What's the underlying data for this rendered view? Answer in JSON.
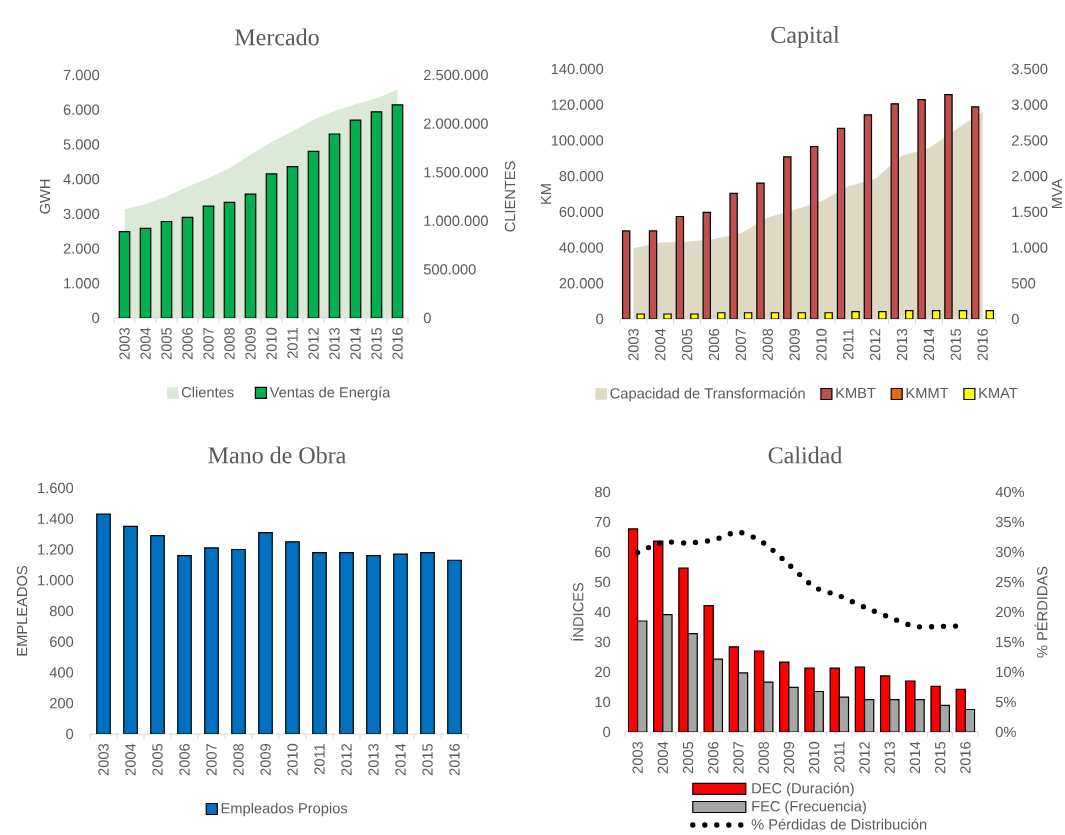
{
  "chart_data": [
    {
      "type": "bar",
      "title": "Mercado",
      "categories": [
        "2003",
        "2004",
        "2005",
        "2006",
        "2007",
        "2008",
        "2009",
        "2010",
        "2011",
        "2012",
        "2013",
        "2014",
        "2015",
        "2016"
      ],
      "ylabel": "GWH",
      "y2label": "CLIENTES",
      "ylim": [
        0,
        7000
      ],
      "yticks": [
        0,
        {
          "value": 1000,
          "label": "1.000"
        },
        {
          "value": 2000,
          "label": "2.000"
        },
        {
          "value": 3000,
          "label": "3.000"
        },
        {
          "value": 4000,
          "label": "4.000"
        },
        {
          "value": 5000,
          "label": "5.000"
        },
        {
          "value": 6000,
          "label": "6.000"
        },
        {
          "value": 7000,
          "label": "7.000"
        }
      ],
      "y2lim": [
        0,
        2500000
      ],
      "y2ticks": [
        0,
        {
          "value": 500000,
          "label": "500.000"
        },
        {
          "value": 1000000,
          "label": "1.000.000"
        },
        {
          "value": 1500000,
          "label": "1.500.000"
        },
        {
          "value": 2000000,
          "label": "2.000.000"
        },
        {
          "value": 2500000,
          "label": "2.500.000"
        }
      ],
      "legend": "bottom",
      "series": [
        {
          "name": "Clientes",
          "type": "area",
          "axis": "y2",
          "color": "#dce9d8",
          "values": [
            1120000,
            1170000,
            1250000,
            1350000,
            1440000,
            1540000,
            1680000,
            1810000,
            1920000,
            2040000,
            2130000,
            2200000,
            2260000,
            2350000
          ]
        },
        {
          "name": "Ventas de Energía",
          "color": "#00b050",
          "values": [
            2490,
            2580,
            2780,
            2900,
            3220,
            3330,
            3570,
            4150,
            4360,
            4800,
            5300,
            5700,
            5940,
            6140
          ]
        }
      ]
    },
    {
      "type": "bar",
      "title": "Capital",
      "categories": [
        "2003",
        "2004",
        "2005",
        "2006",
        "2007",
        "2008",
        "2009",
        "2010",
        "2011",
        "2012",
        "2013",
        "2014",
        "2015",
        "2016"
      ],
      "ylabel": "KM",
      "y2label": "MVA",
      "ylim": [
        0,
        140000
      ],
      "yticks": [
        0,
        {
          "value": 20000,
          "label": "20.000"
        },
        {
          "value": 40000,
          "label": "40.000"
        },
        {
          "value": 60000,
          "label": "60.000"
        },
        {
          "value": 80000,
          "label": "80.000"
        },
        {
          "value": 100000,
          "label": "100.000"
        },
        {
          "value": 120000,
          "label": "120.000"
        },
        {
          "value": 140000,
          "label": "140.000"
        }
      ],
      "y2lim": [
        0,
        3500
      ],
      "y2ticks": [
        0,
        500,
        {
          "value": 1000,
          "label": "1.000"
        },
        {
          "value": 1500,
          "label": "1.500"
        },
        {
          "value": 2000,
          "label": "2.000"
        },
        {
          "value": 2500,
          "label": "2.500"
        },
        {
          "value": 3000,
          "label": "3.000"
        },
        {
          "value": 3500,
          "label": "3.500"
        }
      ],
      "legend": "bottom",
      "series": [
        {
          "name": "Capacidad de Transformación",
          "type": "area",
          "axis": "y2",
          "color": "#ddd9c3",
          "values": [
            990,
            1070,
            1080,
            1120,
            1200,
            1420,
            1530,
            1650,
            1860,
            1960,
            2290,
            2390,
            2650,
            2900
          ]
        },
        {
          "name": "KMBT",
          "color": "#c0504d",
          "values": [
            49300,
            49300,
            57400,
            59700,
            70400,
            76100,
            90800,
            96600,
            106700,
            114300,
            120500,
            122800,
            125600,
            118800
          ]
        },
        {
          "name": "KMMT",
          "color": "#e46c0a",
          "values": [
            null,
            null,
            null,
            null,
            null,
            null,
            null,
            null,
            null,
            null,
            null,
            null,
            null,
            null
          ]
        },
        {
          "name": "KMAT",
          "color": "#ffff00",
          "values": [
            2800,
            2800,
            2800,
            3500,
            3500,
            3500,
            3500,
            3500,
            4100,
            4100,
            4700,
            4700,
            4700,
            4700
          ]
        }
      ]
    },
    {
      "type": "bar",
      "title": "Mano de Obra",
      "categories": [
        "2003",
        "2004",
        "2005",
        "2006",
        "2007",
        "2008",
        "2009",
        "2010",
        "2011",
        "2012",
        "2013",
        "2014",
        "2015",
        "2016"
      ],
      "ylabel": "EMPLEADOS",
      "ylim": [
        0,
        1600
      ],
      "yticks": [
        0,
        200,
        400,
        600,
        800,
        {
          "value": 1000,
          "label": "1.000"
        },
        {
          "value": 1200,
          "label": "1.200"
        },
        {
          "value": 1400,
          "label": "1.400"
        },
        {
          "value": 1600,
          "label": "1.600"
        }
      ],
      "legend": "bottom",
      "series": [
        {
          "name": "Empleados Propios",
          "color": "#0070c0",
          "values": [
            1430,
            1350,
            1290,
            1160,
            1210,
            1200,
            1310,
            1250,
            1180,
            1180,
            1160,
            1170,
            1180,
            1130
          ]
        }
      ]
    },
    {
      "type": "bar",
      "title": "Calidad",
      "categories": [
        "2003",
        "2004",
        "2005",
        "2006",
        "2007",
        "2008",
        "2009",
        "2010",
        "2011",
        "2012",
        "2013",
        "2014",
        "2015",
        "2016"
      ],
      "ylabel": "ÍNDICES",
      "y2label": "% PÉRDIDAS",
      "ylim": [
        0,
        80
      ],
      "yticks": [
        0,
        10,
        20,
        30,
        40,
        50,
        60,
        70,
        80
      ],
      "y2lim": [
        0,
        40
      ],
      "y2ticks": [
        {
          "value": 0,
          "label": "0%"
        },
        {
          "value": 5,
          "label": "5%"
        },
        {
          "value": 10,
          "label": "10%"
        },
        {
          "value": 15,
          "label": "15%"
        },
        {
          "value": 20,
          "label": "20%"
        },
        {
          "value": 25,
          "label": "25%"
        },
        {
          "value": 30,
          "label": "30%"
        },
        {
          "value": 35,
          "label": "35%"
        },
        {
          "value": 40,
          "label": "40%"
        }
      ],
      "legend": "bottom",
      "series": [
        {
          "name": "DEC (Duración)",
          "color": "#ff0000",
          "values": [
            67.7,
            63.6,
            54.6,
            42.1,
            28.4,
            27.0,
            23.3,
            21.3,
            21.3,
            21.6,
            18.7,
            17.0,
            15.2,
            14.2
          ]
        },
        {
          "name": "FEC (Frecuencia)",
          "color": "#a6a6a6",
          "values": [
            37.0,
            39.1,
            32.8,
            24.3,
            19.7,
            16.6,
            14.9,
            13.5,
            11.6,
            10.8,
            10.8,
            10.8,
            8.9,
            7.5
          ]
        },
        {
          "name": "% Pérdidas de Distribución",
          "type": "line",
          "axis": "y2",
          "color": "#000000",
          "line_style": "dotted",
          "values": [
            29.9,
            31.6,
            31.5,
            32.0,
            33.3,
            31.5,
            27.9,
            24.2,
            22.7,
            20.8,
            19.1,
            17.6,
            17.6,
            17.7
          ]
        }
      ]
    }
  ]
}
